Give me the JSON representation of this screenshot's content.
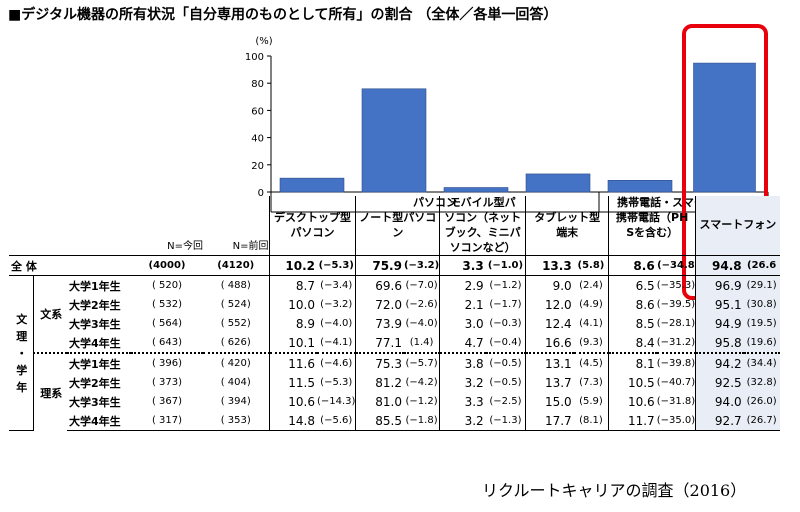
{
  "title": "■デジタル機器の所有状況「自分専用のものとして所有」の割合 （全体／各単一回答）",
  "source": "リクルートキャリアの調査（2016）",
  "chart_data": {
    "type": "bar",
    "ylabel": "(%)",
    "ylim": [
      0,
      100
    ],
    "yticks": [
      0,
      20,
      40,
      60,
      80,
      100
    ],
    "grid": false,
    "categories": [
      "デスクトップ型パソコン",
      "ノート型パソコン",
      "モバイル型パソコン（ネットブック、ミニパソコンなど）",
      "タブレット型端末",
      "携帯電話（PHSを含む）",
      "スマートフォン"
    ],
    "values": [
      10.2,
      75.9,
      3.3,
      13.3,
      8.6,
      94.8
    ],
    "group_labels": [
      "パソコン",
      "携帯電話・スマートフォン"
    ],
    "bar_color": "#4472c4",
    "highlight_color": "#e8000c"
  },
  "table": {
    "n_now_label": "N=今回",
    "n_prev_label": "N=前回",
    "headers": [
      [
        "デスクトップ型",
        "パソコン"
      ],
      [
        "ノート型パソコ",
        "ン"
      ],
      [
        "モバイル型パ",
        "ソコン（ネット",
        "ブック、ミニパ",
        "ソコンなど）"
      ],
      [
        "タブレット型",
        "端末"
      ],
      [
        "携帯電話（PH",
        "Sを含む）"
      ],
      [
        "スマートフォン"
      ]
    ],
    "total": {
      "label": "全 体",
      "n_now": "(4000)",
      "n_prev": "(4120)",
      "cells": [
        [
          "10.2",
          "(−5.3)"
        ],
        [
          "75.9",
          "(−3.2)"
        ],
        [
          "3.3",
          "(−1.0)"
        ],
        [
          "13.3",
          "(5.8)"
        ],
        [
          "8.6",
          "(−34.8"
        ],
        [
          "94.8",
          "(26.6"
        ]
      ]
    },
    "axis_label": "文理・学年",
    "groups": [
      {
        "label": "文系",
        "rows": [
          {
            "label": "大学1年生",
            "n_now": "( 520)",
            "n_prev": "( 488)",
            "cells": [
              [
                "8.7",
                "(−3.4)"
              ],
              [
                "69.6",
                "(−7.0)"
              ],
              [
                "2.9",
                "(−1.2)"
              ],
              [
                "9.0",
                "(2.4)"
              ],
              [
                "6.5",
                "(−35.3)"
              ],
              [
                "96.9",
                "(29.1)"
              ]
            ]
          },
          {
            "label": "大学2年生",
            "n_now": "( 532)",
            "n_prev": "( 524)",
            "cells": [
              [
                "10.0",
                "(−3.2)"
              ],
              [
                "72.0",
                "(−2.6)"
              ],
              [
                "2.1",
                "(−1.7)"
              ],
              [
                "12.0",
                "(4.9)"
              ],
              [
                "8.6",
                "(−39.5)"
              ],
              [
                "95.1",
                "(30.8)"
              ]
            ]
          },
          {
            "label": "大学3年生",
            "n_now": "( 564)",
            "n_prev": "( 552)",
            "cells": [
              [
                "8.9",
                "(−4.0)"
              ],
              [
                "73.9",
                "(−4.0)"
              ],
              [
                "3.0",
                "(−0.3)"
              ],
              [
                "12.4",
                "(4.1)"
              ],
              [
                "8.5",
                "(−28.1)"
              ],
              [
                "94.9",
                "(19.5)"
              ]
            ]
          },
          {
            "label": "大学4年生",
            "n_now": "( 643)",
            "n_prev": "( 626)",
            "cells": [
              [
                "10.1",
                "(−4.1)"
              ],
              [
                "77.1",
                "(1.4)"
              ],
              [
                "4.7",
                "(−0.4)"
              ],
              [
                "16.6",
                "(9.3)"
              ],
              [
                "8.4",
                "(−31.2)"
              ],
              [
                "95.8",
                "(19.6)"
              ]
            ]
          }
        ]
      },
      {
        "label": "理系",
        "rows": [
          {
            "label": "大学1年生",
            "n_now": "( 396)",
            "n_prev": "( 420)",
            "cells": [
              [
                "11.6",
                "(−4.6)"
              ],
              [
                "75.3",
                "(−5.7)"
              ],
              [
                "3.8",
                "(−0.5)"
              ],
              [
                "13.1",
                "(4.5)"
              ],
              [
                "8.1",
                "(−39.8)"
              ],
              [
                "94.2",
                "(34.4)"
              ]
            ]
          },
          {
            "label": "大学2年生",
            "n_now": "( 373)",
            "n_prev": "( 404)",
            "cells": [
              [
                "11.5",
                "(−5.3)"
              ],
              [
                "81.2",
                "(−4.2)"
              ],
              [
                "3.2",
                "(−0.5)"
              ],
              [
                "13.7",
                "(7.3)"
              ],
              [
                "10.5",
                "(−40.7)"
              ],
              [
                "92.5",
                "(32.8)"
              ]
            ]
          },
          {
            "label": "大学3年生",
            "n_now": "( 367)",
            "n_prev": "( 394)",
            "cells": [
              [
                "10.6",
                "(−14.3)"
              ],
              [
                "81.0",
                "(−1.2)"
              ],
              [
                "3.3",
                "(−2.5)"
              ],
              [
                "15.0",
                "(5.9)"
              ],
              [
                "10.6",
                "(−31.8)"
              ],
              [
                "94.0",
                "(26.0)"
              ]
            ]
          },
          {
            "label": "大学4年生",
            "n_now": "( 317)",
            "n_prev": "( 353)",
            "cells": [
              [
                "14.8",
                "(−5.6)"
              ],
              [
                "85.5",
                "(−1.8)"
              ],
              [
                "3.2",
                "(−1.3)"
              ],
              [
                "17.7",
                "(8.1)"
              ],
              [
                "11.7",
                "(−35.0)"
              ],
              [
                "92.7",
                "(26.7)"
              ]
            ]
          }
        ]
      }
    ]
  }
}
